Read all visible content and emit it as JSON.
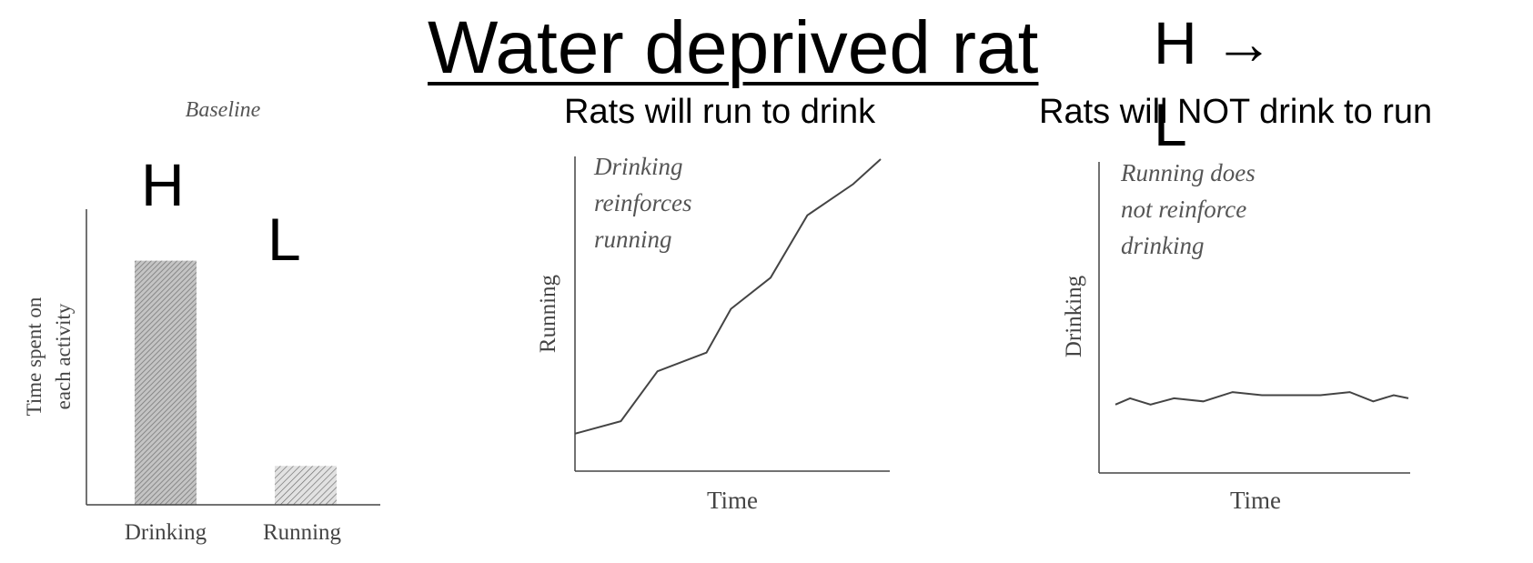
{
  "slide": {
    "title": "Water deprived rat",
    "h_arrow": "H →",
    "l_right": "L",
    "subtitle_left": "Rats will run to drink",
    "subtitle_right": "Rats will NOT drink to run",
    "h_left": "H",
    "l_left": "L"
  },
  "colors": {
    "ink": "#000000",
    "chart_ink": "#444444",
    "bar_fill": "#a8a8a8"
  },
  "chart_data": [
    {
      "type": "bar",
      "title": "Baseline",
      "categories": [
        "Drinking",
        "Running"
      ],
      "values": [
        88,
        14
      ],
      "ylabel_line1": "Time spent on",
      "ylabel_line2": "each activity",
      "xlabel": "",
      "ylim": [
        0,
        100
      ],
      "grid": false
    },
    {
      "type": "line",
      "annotation": [
        "Drinking",
        "reinforces",
        "running"
      ],
      "xlabel": "Time",
      "ylabel": "Running",
      "ylim": [
        0,
        100
      ],
      "xlim": [
        0,
        100
      ],
      "grid": false,
      "series": [
        {
          "x": [
            0,
            15,
            27,
            43,
            51,
            64,
            76,
            91,
            100
          ],
          "y": [
            12,
            16,
            32,
            38,
            52,
            62,
            82,
            92,
            100
          ]
        }
      ]
    },
    {
      "type": "line",
      "annotation": [
        "Running does",
        "not reinforce",
        "drinking"
      ],
      "xlabel": "Time",
      "ylabel": "Drinking",
      "ylim": [
        0,
        100
      ],
      "xlim": [
        0,
        100
      ],
      "grid": false,
      "series": [
        {
          "x": [
            0,
            5,
            12,
            20,
            30,
            40,
            50,
            60,
            70,
            80,
            88,
            95,
            100
          ],
          "y": [
            22,
            24,
            22,
            24,
            23,
            26,
            25,
            25,
            25,
            26,
            23,
            25,
            24
          ]
        }
      ]
    }
  ]
}
